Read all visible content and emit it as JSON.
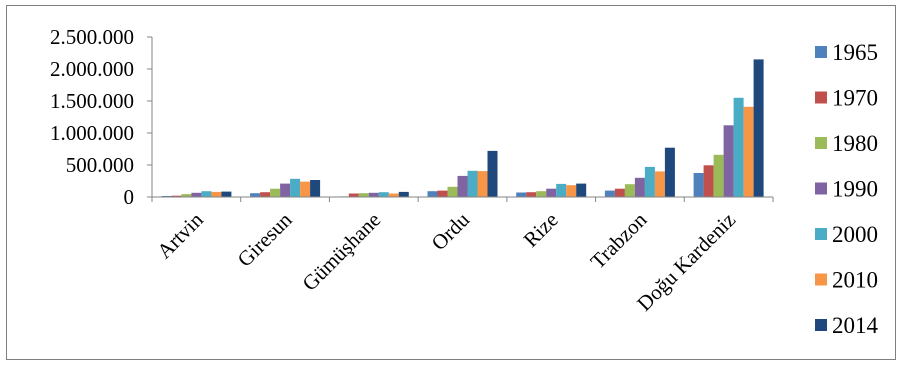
{
  "chart_data": {
    "type": "bar",
    "categories": [
      "Artvin",
      "Giresun",
      "Gümüşhane",
      "Ordu",
      "Rize",
      "Trabzon",
      "Doğu Kardeniz"
    ],
    "ylim": [
      0,
      2500000
    ],
    "y_ticks": [
      0,
      500000,
      1000000,
      1500000,
      2000000,
      2500000
    ],
    "y_tick_labels": [
      "0",
      "500.000",
      "1.000.000",
      "1.500.000",
      "2.000.000",
      "2.500.000"
    ],
    "grid": false,
    "legend_position": "right",
    "series": [
      {
        "name": "1965",
        "color": "#4f81bd",
        "values": [
          15000,
          60000,
          10000,
          90000,
          70000,
          100000,
          375000
        ]
      },
      {
        "name": "1970",
        "color": "#c0504d",
        "values": [
          20000,
          75000,
          55000,
          100000,
          75000,
          130000,
          495000
        ]
      },
      {
        "name": "1980",
        "color": "#9bbb59",
        "values": [
          45000,
          130000,
          60000,
          160000,
          90000,
          200000,
          660000
        ]
      },
      {
        "name": "1990",
        "color": "#8064a2",
        "values": [
          65000,
          210000,
          65000,
          330000,
          130000,
          300000,
          1120000
        ]
      },
      {
        "name": "2000",
        "color": "#4bacc6",
        "values": [
          90000,
          285000,
          75000,
          410000,
          205000,
          470000,
          1550000
        ]
      },
      {
        "name": "2010",
        "color": "#f79646",
        "values": [
          80000,
          240000,
          55000,
          405000,
          185000,
          400000,
          1410000
        ]
      },
      {
        "name": "2014",
        "color": "#1f497d",
        "values": [
          85000,
          265000,
          80000,
          720000,
          210000,
          770000,
          2150000
        ]
      }
    ]
  }
}
